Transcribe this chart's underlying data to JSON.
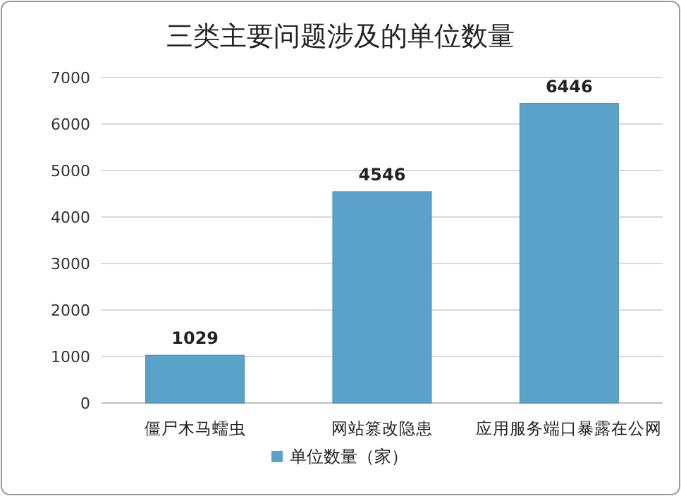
{
  "chart_data": {
    "type": "bar",
    "title": "三类主要问题涉及的单位数量",
    "categories": [
      "僵尸木马蠕虫",
      "网站篡改隐患",
      "应用服务端口暴露在公网"
    ],
    "series": [
      {
        "name": "单位数量（家）",
        "color": "#5aa3c8",
        "values": [
          1029,
          4546,
          6446
        ]
      }
    ],
    "ylim": [
      0,
      7000
    ],
    "yticks": [
      0,
      1000,
      2000,
      3000,
      4000,
      5000,
      6000,
      7000
    ],
    "grid": "y",
    "legend": "bottom",
    "data_labels": true
  }
}
